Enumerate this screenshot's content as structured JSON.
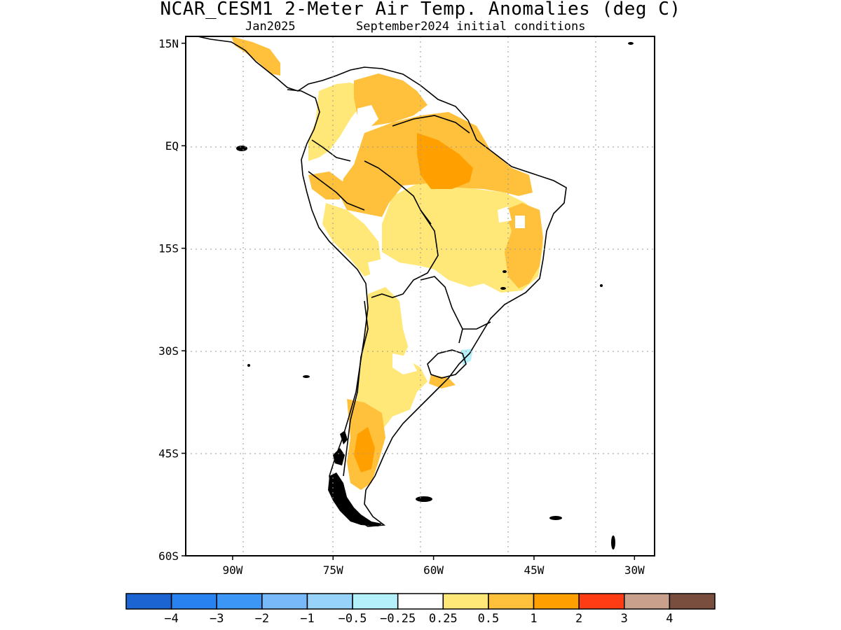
{
  "title": "NCAR_CESM1 2-Meter Air Temp. Anomalies (deg C)",
  "subtitle_left": "Jan2025",
  "subtitle_right": "September2024 initial conditions",
  "map": {
    "lon_range": [
      -97,
      -27
    ],
    "lat_range": [
      -60,
      16
    ],
    "lat_ticks": [
      {
        "value": 15,
        "label": "15N"
      },
      {
        "value": 0,
        "label": "EQ"
      },
      {
        "value": -15,
        "label": "15S"
      },
      {
        "value": -30,
        "label": "30S"
      },
      {
        "value": -45,
        "label": "45S"
      },
      {
        "value": -60,
        "label": "60S"
      }
    ],
    "lon_ticks": [
      {
        "value": -90,
        "label": "90W"
      },
      {
        "value": -75,
        "label": "75W"
      },
      {
        "value": -60,
        "label": "60W"
      },
      {
        "value": -45,
        "label": "45W"
      },
      {
        "value": -30,
        "label": "30W"
      }
    ],
    "grid": "dotted"
  },
  "colorbar": {
    "colors": [
      "#1c64d2",
      "#2882f0",
      "#3c96f5",
      "#78b9fa",
      "#96d2fa",
      "#b4f0fa",
      "#ffffff",
      "#ffe878",
      "#ffc03c",
      "#ffa000",
      "#ff3c14",
      "#c8a08c",
      "#7a4e3e"
    ],
    "labels": [
      "−4",
      "−3",
      "−2",
      "−1",
      "−0.5",
      "−0.25",
      "0.25",
      "0.5",
      "1",
      "2",
      "3",
      "4"
    ]
  }
}
